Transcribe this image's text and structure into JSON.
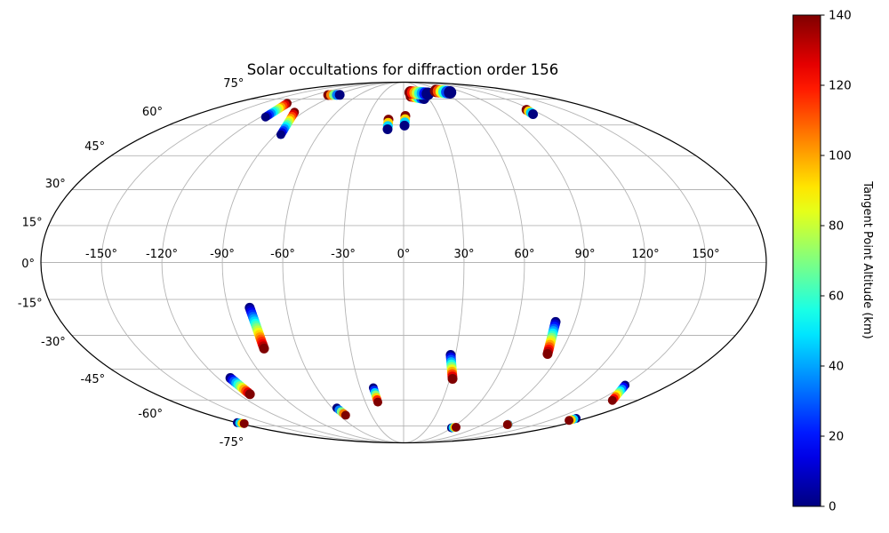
{
  "title": "Solar occultations for diffraction order 156",
  "chart_data": {
    "type": "scatter",
    "projection": "mollweide",
    "title": "Solar occultations for diffraction order 156",
    "grid": true,
    "grid_color": "#b4b4b4",
    "outline_color": "#000000",
    "background_color": "#ffffff",
    "lat_gridline_spacing_deg": 15,
    "lon_gridline_spacing_deg": 30,
    "lat_ticks": [
      {
        "value": 75,
        "label": "75°"
      },
      {
        "value": 60,
        "label": "60°"
      },
      {
        "value": 45,
        "label": "45°"
      },
      {
        "value": 30,
        "label": "30°"
      },
      {
        "value": 15,
        "label": "15°"
      },
      {
        "value": 0,
        "label": "0°"
      },
      {
        "value": -15,
        "label": "-15°"
      },
      {
        "value": -30,
        "label": "-30°"
      },
      {
        "value": -45,
        "label": "-45°"
      },
      {
        "value": -60,
        "label": "-60°"
      },
      {
        "value": -75,
        "label": "-75°"
      }
    ],
    "lon_ticks": [
      {
        "value": -150,
        "label": "-150°"
      },
      {
        "value": -120,
        "label": "-120°"
      },
      {
        "value": -90,
        "label": "-90°"
      },
      {
        "value": -60,
        "label": "-60°"
      },
      {
        "value": -30,
        "label": "-30°"
      },
      {
        "value": 0,
        "label": "0°"
      },
      {
        "value": 30,
        "label": "30°"
      },
      {
        "value": 60,
        "label": "60°"
      },
      {
        "value": 90,
        "label": "90°"
      },
      {
        "value": 120,
        "label": "120°"
      },
      {
        "value": 150,
        "label": "150°"
      }
    ],
    "colorbar": {
      "label": "Tangent Point Altitude (km)",
      "min": 0,
      "max": 140,
      "ticks": [
        0,
        20,
        40,
        60,
        80,
        100,
        120,
        140
      ],
      "tick_labels": [
        "0",
        "20",
        "40",
        "60",
        "80",
        "100",
        "120",
        "140"
      ],
      "colormap": "jet"
    },
    "altitude_range_km": [
      0,
      140
    ],
    "tracks_note": "Each occultation track is a string of overlapping dots interpolated from the first point to the last point; dot color maps altitude (km) onto the jet colormap; later points are drawn on top.",
    "tracks": [
      {
        "lon_first": -123.0,
        "lat_first": 72.3,
        "alt_first": 140,
        "lon_last": -116.0,
        "lat_last": 64.3,
        "alt_last": 0,
        "size": 5
      },
      {
        "lon_first": -98.0,
        "lat_first": 67.0,
        "alt_first": 140,
        "lon_last": -86.4,
        "lat_last": 55.1,
        "alt_last": 0,
        "size": 5
      },
      {
        "lon_first": -101.0,
        "lat_first": 77.8,
        "alt_first": 140,
        "lon_last": -86.0,
        "lat_last": 77.9,
        "alt_last": 0,
        "size": 5.5
      },
      {
        "lon_first": 9.4,
        "lat_first": 76.9,
        "alt_first": 140,
        "lon_last": 24.3,
        "lat_last": 75.3,
        "alt_last": 0,
        "size": 6
      },
      {
        "lon_first": 10.5,
        "lat_first": 79.7,
        "alt_first": 140,
        "lon_last": 34.0,
        "lat_last": 78.7,
        "alt_last": 0,
        "size": 7
      },
      {
        "lon_first": 52.3,
        "lat_first": 80.8,
        "alt_first": 140,
        "lon_last": 69.4,
        "lat_last": 79.7,
        "alt_last": 0,
        "size": 7
      },
      {
        "lon_first": -12.3,
        "lat_first": 62.9,
        "alt_first": 140,
        "lon_last": -11.8,
        "lat_last": 57.8,
        "alt_last": 0,
        "size": 5.5
      },
      {
        "lon_first": 1.5,
        "lat_first": 64.9,
        "alt_first": 140,
        "lon_last": 0.7,
        "lat_last": 59.7,
        "alt_last": 0,
        "size": 5.5
      },
      {
        "lon_first": 114.7,
        "lat_first": 68.4,
        "alt_first": 140,
        "lon_last": 113.0,
        "lat_last": 65.9,
        "alt_last": 0,
        "size": 5.5
      },
      {
        "lon_first": -78.9,
        "lat_first": -18.4,
        "alt_first": 0,
        "lon_last": -78.8,
        "lat_last": -35.7,
        "alt_last": 140,
        "size": 5.5
      },
      {
        "lon_first": -112.0,
        "lat_first": -49.1,
        "alt_first": 0,
        "lon_last": -111.6,
        "lat_last": -57.0,
        "alt_last": 140,
        "size": 5.5
      },
      {
        "lon_first": -179.5,
        "lat_first": -72.9,
        "alt_first": 0,
        "lon_last": -176.0,
        "lat_last": -73.5,
        "alt_last": 140,
        "size": 5
      },
      {
        "lon_first": -56.1,
        "lat_first": -64.3,
        "alt_first": 0,
        "lon_last": -54.1,
        "lat_last": -68.4,
        "alt_last": 140,
        "size": 5
      },
      {
        "lon_first": -20.9,
        "lat_first": -53.8,
        "alt_first": 0,
        "lon_last": -20.2,
        "lat_last": -61.1,
        "alt_last": 140,
        "size": 5
      },
      {
        "lon_first": 27.2,
        "lat_first": -38.5,
        "alt_first": 0,
        "lon_last": 31.8,
        "lat_last": -49.5,
        "alt_last": 140,
        "size": 5.5
      },
      {
        "lon_first": 79.9,
        "lat_first": -24.3,
        "alt_first": 0,
        "lon_last": 82.9,
        "lat_last": -38.1,
        "alt_last": 140,
        "size": 5.5
      },
      {
        "lon_first": 149.9,
        "lat_first": -52.5,
        "alt_first": 0,
        "lon_last": 160.7,
        "lat_last": -60.2,
        "alt_last": 140,
        "size": 5
      },
      {
        "lon_first": 59.5,
        "lat_first": -76.3,
        "alt_first": 0,
        "lon_last": 64.0,
        "lat_last": -75.9,
        "alt_last": 140,
        "size": 5
      },
      {
        "lon_first": 117.5,
        "lat_first": -74.0,
        "alt_first": 0,
        "lon_last": 117.8,
        "lat_last": -74.2,
        "alt_last": 140,
        "size": 5
      },
      {
        "lon_first": 170.5,
        "lat_first": -70.3,
        "alt_first": 0,
        "lon_last": 170.0,
        "lat_last": -71.5,
        "alt_last": 140,
        "size": 5
      }
    ]
  }
}
